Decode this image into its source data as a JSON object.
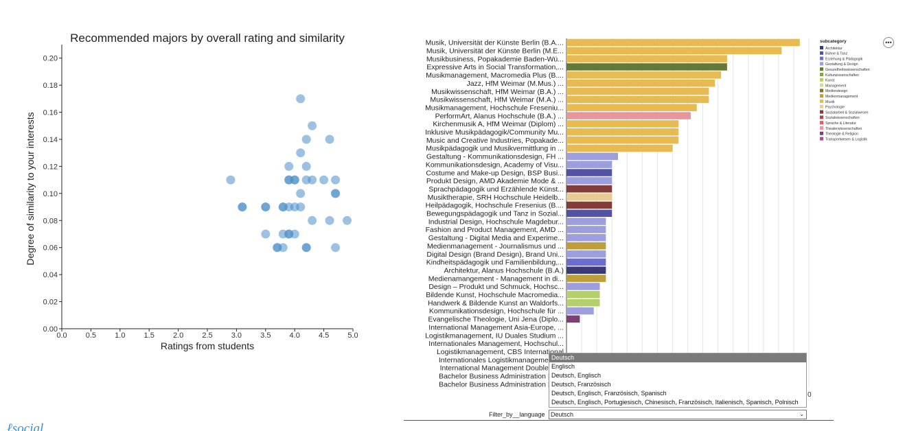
{
  "scatter": {
    "chart_data": {
      "type": "scatter",
      "title": "Recommended majors by overall rating and similarity",
      "xlabel": "Ratings from students",
      "ylabel": "Degree of similarity to your interests",
      "xlim": [
        0,
        5
      ],
      "ylim": [
        0,
        0.21
      ],
      "xticks": [
        "0.0",
        "0.5",
        "1.0",
        "1.5",
        "2.0",
        "2.5",
        "3.0",
        "3.5",
        "4.0",
        "4.5",
        "5.0"
      ],
      "yticks": [
        "0.00",
        "0.02",
        "0.04",
        "0.06",
        "0.08",
        "0.10",
        "0.12",
        "0.14",
        "0.16",
        "0.18",
        "0.20"
      ],
      "point_color": "#4a8ec9",
      "points": [
        {
          "x": 2.9,
          "y": 0.11
        },
        {
          "x": 3.1,
          "y": 0.09
        },
        {
          "x": 3.1,
          "y": 0.09
        },
        {
          "x": 3.5,
          "y": 0.09
        },
        {
          "x": 3.5,
          "y": 0.09
        },
        {
          "x": 3.5,
          "y": 0.07
        },
        {
          "x": 3.7,
          "y": 0.06
        },
        {
          "x": 3.7,
          "y": 0.06
        },
        {
          "x": 3.8,
          "y": 0.06
        },
        {
          "x": 3.8,
          "y": 0.07
        },
        {
          "x": 3.8,
          "y": 0.09
        },
        {
          "x": 3.8,
          "y": 0.09
        },
        {
          "x": 3.9,
          "y": 0.07
        },
        {
          "x": 3.9,
          "y": 0.07
        },
        {
          "x": 3.9,
          "y": 0.09
        },
        {
          "x": 3.9,
          "y": 0.11
        },
        {
          "x": 3.9,
          "y": 0.12
        },
        {
          "x": 3.9,
          "y": 0.11
        },
        {
          "x": 4.0,
          "y": 0.07
        },
        {
          "x": 4.0,
          "y": 0.09
        },
        {
          "x": 4.0,
          "y": 0.11
        },
        {
          "x": 4.0,
          "y": 0.11
        },
        {
          "x": 4.1,
          "y": 0.09
        },
        {
          "x": 4.1,
          "y": 0.1
        },
        {
          "x": 4.1,
          "y": 0.13
        },
        {
          "x": 4.1,
          "y": 0.17
        },
        {
          "x": 4.2,
          "y": 0.06
        },
        {
          "x": 4.2,
          "y": 0.06
        },
        {
          "x": 4.2,
          "y": 0.11
        },
        {
          "x": 4.2,
          "y": 0.12
        },
        {
          "x": 4.2,
          "y": 0.14
        },
        {
          "x": 4.3,
          "y": 0.08
        },
        {
          "x": 4.3,
          "y": 0.11
        },
        {
          "x": 4.3,
          "y": 0.15
        },
        {
          "x": 4.5,
          "y": 0.11
        },
        {
          "x": 4.6,
          "y": 0.08
        },
        {
          "x": 4.6,
          "y": 0.14
        },
        {
          "x": 4.7,
          "y": 0.06
        },
        {
          "x": 4.7,
          "y": 0.1
        },
        {
          "x": 4.7,
          "y": 0.1
        },
        {
          "x": 4.7,
          "y": 0.11
        },
        {
          "x": 4.9,
          "y": 0.08
        }
      ]
    }
  },
  "bars": {
    "chart_data": {
      "type": "bar",
      "orientation": "horizontal",
      "xlim": [
        0,
        0.4
      ],
      "axis_tick_visible": "0",
      "legend": {
        "title": "subcategory",
        "items": [
          {
            "label": "Architektur",
            "color": "#393b79"
          },
          {
            "label": "Bühne & Tanz",
            "color": "#5254a3"
          },
          {
            "label": "Erziehung & Pädagogik",
            "color": "#6b6ecf"
          },
          {
            "label": "Gestaltung & Design",
            "color": "#9c9ede"
          },
          {
            "label": "Gesundheitswissenschaften",
            "color": "#637939"
          },
          {
            "label": "Kulturwissenschaften",
            "color": "#8ca252"
          },
          {
            "label": "Kunst",
            "color": "#b5cf6b"
          },
          {
            "label": "Management",
            "color": "#cedb9c"
          },
          {
            "label": "Mediendesign",
            "color": "#8c6d31"
          },
          {
            "label": "Medienmanagement",
            "color": "#bd9e39"
          },
          {
            "label": "Musik",
            "color": "#e7ba52"
          },
          {
            "label": "Psychologie",
            "color": "#e7cb94"
          },
          {
            "label": "Sozialarbeit & Sozialwesen",
            "color": "#843c39"
          },
          {
            "label": "Sozialwissenschaften",
            "color": "#ad494a"
          },
          {
            "label": "Sprache & Literatur",
            "color": "#d6616b"
          },
          {
            "label": "Theaterwissenschaften",
            "color": "#e7969c"
          },
          {
            "label": "Theologie & Religion",
            "color": "#7b4173"
          },
          {
            "label": "Transportwesen & Logistik",
            "color": "#a55194"
          }
        ]
      },
      "rows": [
        {
          "label": "Musik, Universität der Künste Berlin (B.A....",
          "value": 0.385,
          "cat": "Musik"
        },
        {
          "label": "Musik, Universität der Künste Berlin (M.E...",
          "value": 0.355,
          "cat": "Musik"
        },
        {
          "label": "Musikbusiness, Popakademie Baden-Wü...",
          "value": 0.265,
          "cat": "Musik"
        },
        {
          "label": "Expressive Arts in Social Transformation,...",
          "value": 0.265,
          "cat": "Gesundheitswissenschaften"
        },
        {
          "label": "Musikmanagement, Macromedia Plus (B....",
          "value": 0.255,
          "cat": "Musik"
        },
        {
          "label": "Jazz, HfM Weimar (M.Mus.)            ...",
          "value": 0.245,
          "cat": "Musik"
        },
        {
          "label": "Musikwissenschaft, HfM Weimar (B.A.)   ...",
          "value": 0.235,
          "cat": "Musik"
        },
        {
          "label": "Musikwissenschaft, HfM Weimar (M.A.)   ...",
          "value": 0.235,
          "cat": "Musik"
        },
        {
          "label": "Musikmanagement, Hochschule Freseniu...",
          "value": 0.215,
          "cat": "Musik"
        },
        {
          "label": "PerformArt, Alanus Hochschule (B.A.)     ...",
          "value": 0.205,
          "cat": "Theaterwissenschaften"
        },
        {
          "label": "Kirchenmusik A, HfM Weimar (Diplom)     ...",
          "value": 0.185,
          "cat": "Musik"
        },
        {
          "label": "Inklusive Musikpädagogik/Community Mu...",
          "value": 0.185,
          "cat": "Musik"
        },
        {
          "label": "Music and Creative Industries, Popakade...",
          "value": 0.185,
          "cat": "Musik"
        },
        {
          "label": "Musikpädagogik und Musikvermittlung in ...",
          "value": 0.175,
          "cat": "Musik"
        },
        {
          "label": "Gestaltung - Kommunikationsdesign, FH ...",
          "value": 0.085,
          "cat": "Gestaltung & Design"
        },
        {
          "label": "Kommunikationsdesign, Academy of Visu...",
          "value": 0.075,
          "cat": "Gestaltung & Design"
        },
        {
          "label": "Costume and Make-up Design, BSP Busi...",
          "value": 0.075,
          "cat": "Bühne & Tanz"
        },
        {
          "label": "Produkt Design, AMD Akademie Mode & ...",
          "value": 0.075,
          "cat": "Gestaltung & Design"
        },
        {
          "label": "Sprachpädagogik und Erzählende Künst...",
          "value": 0.075,
          "cat": "Sozialarbeit & Sozialwesen"
        },
        {
          "label": "Musiktherapie, SRH Hochschule Heidelb...",
          "value": 0.075,
          "cat": "Psychologie"
        },
        {
          "label": "Heilpädagogik, Hochschule Fresenius (B....",
          "value": 0.075,
          "cat": "Sozialarbeit & Sozialwesen"
        },
        {
          "label": "Bewegungspädagogik und Tanz in Sozial...",
          "value": 0.075,
          "cat": "Bühne & Tanz"
        },
        {
          "label": "Industrial Design, Hochschule Magdebur...",
          "value": 0.065,
          "cat": "Gestaltung & Design"
        },
        {
          "label": "Fashion and Product Management, AMD ...",
          "value": 0.065,
          "cat": "Gestaltung & Design"
        },
        {
          "label": "Gestaltung - Digital Media and Experime...",
          "value": 0.065,
          "cat": "Gestaltung & Design"
        },
        {
          "label": "Medienmanagement - Journalismus und ...",
          "value": 0.065,
          "cat": "Medienmanagement"
        },
        {
          "label": "Digital Design (Brand Design), Brand Uni...",
          "value": 0.065,
          "cat": "Gestaltung & Design"
        },
        {
          "label": "Kindheitspädagogik und Familienbildung,...",
          "value": 0.065,
          "cat": "Erziehung & Pädagogik"
        },
        {
          "label": "Architektur, Alanus Hochschule (B.A.)",
          "value": 0.065,
          "cat": "Architektur"
        },
        {
          "label": "Medienamangement - Management in di...",
          "value": 0.065,
          "cat": "Medienmanagement"
        },
        {
          "label": "Design – Produkt und Schmuck, Hochsc...",
          "value": 0.055,
          "cat": "Gestaltung & Design"
        },
        {
          "label": "Bildende Kunst, Hochschule Macromedia...",
          "value": 0.055,
          "cat": "Kunst"
        },
        {
          "label": "Handwerk & Bildende Kunst an Waldorfs...",
          "value": 0.055,
          "cat": "Kunst"
        },
        {
          "label": "Kommunikationsdesign, Hochschule für ...",
          "value": 0.045,
          "cat": "Gestaltung & Design"
        },
        {
          "label": "Evangelische Theologie, Uni Jena (Diplo...",
          "value": 0.022,
          "cat": "Theologie & Religion"
        },
        {
          "label": "International Management Asia-Europe, ...",
          "value": 0.0,
          "cat": "Management"
        },
        {
          "label": "Logistikmanagement, IU Duales Studium ...",
          "value": 0.0,
          "cat": "Transportwesen & Logistik"
        },
        {
          "label": "Internationales Management, Hochschul...",
          "value": 0.0,
          "cat": "Management"
        },
        {
          "label": "Logistikmanagement, CBS International",
          "value": 0.0,
          "cat": "Transportwesen & Logistik"
        },
        {
          "label": "Internationales Logistikmanagement, H",
          "value": 0.0,
          "cat": "Transportwesen & Logistik"
        },
        {
          "label": "International Management Double Deg",
          "value": 0.0,
          "cat": "Management"
        },
        {
          "label": "Bachelor Business Administration | Fok",
          "value": 0.0,
          "cat": "Management"
        },
        {
          "label": "Bachelor Business Administration | Fok",
          "value": 0.0,
          "cat": "Management"
        }
      ]
    }
  },
  "more_button_label": "•••",
  "filter": {
    "label": "Filter_by__language",
    "selected": "Deutsch",
    "options": [
      "Deutsch",
      "Englisch",
      "Deutsch, Englisch",
      "Deutsch, Französisch",
      "Deutsch, Englisch, Französisch, Spanisch",
      "Deutsch, Englisch, Portugiesisch, Chinesisch, Französisch, Italienisch, Spanisch, Polnisch"
    ]
  }
}
